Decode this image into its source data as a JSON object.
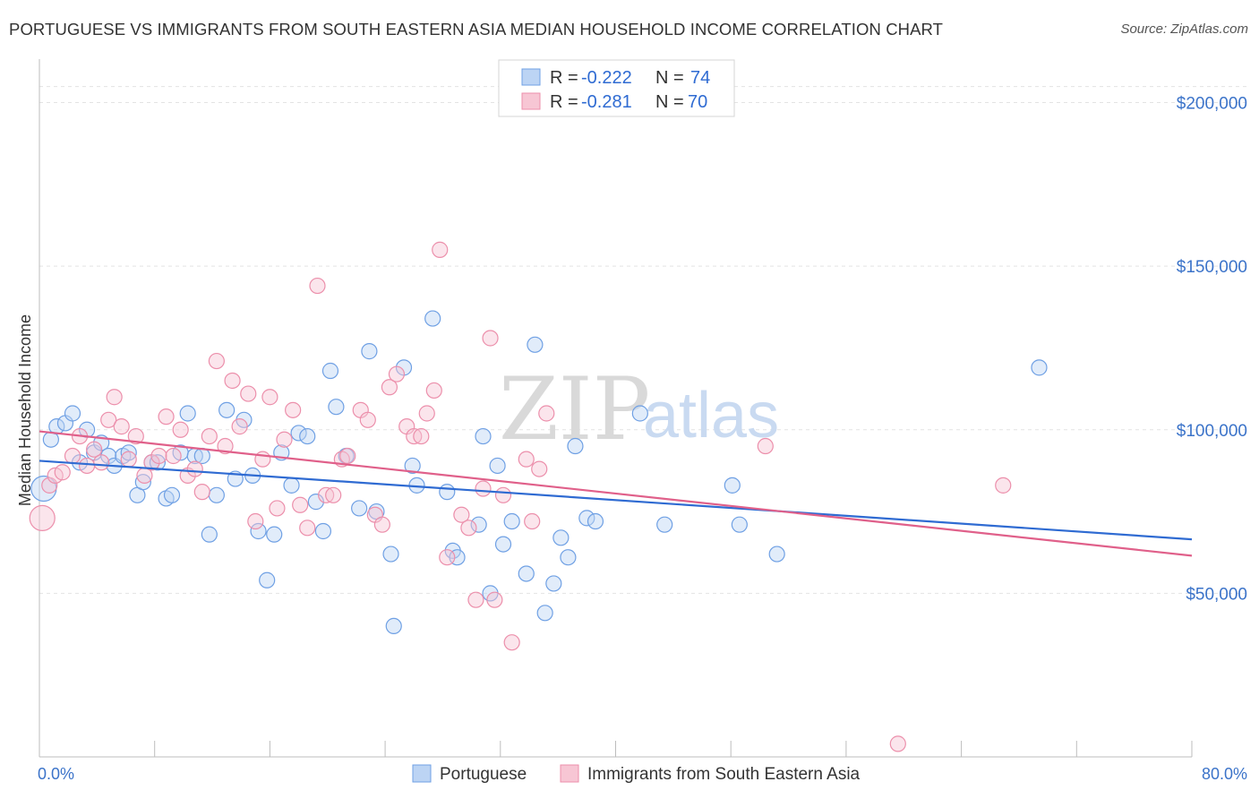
{
  "header": {
    "title": "PORTUGUESE VS IMMIGRANTS FROM SOUTH EASTERN ASIA MEDIAN HOUSEHOLD INCOME CORRELATION CHART",
    "source": "Source: ZipAtlas.com"
  },
  "watermark": {
    "zip": "ZIP",
    "atlas": "atlas"
  },
  "legend": {
    "rows": [
      {
        "r_label": "R =",
        "r_value": "-0.222",
        "n_label": "N =",
        "n_value": "74"
      },
      {
        "r_label": "R =",
        "r_value": "-0.281",
        "n_label": "N =",
        "n_value": "70"
      }
    ]
  },
  "chart_data": {
    "type": "scatter",
    "title": "PORTUGUESE VS IMMIGRANTS FROM SOUTH EASTERN ASIA MEDIAN HOUSEHOLD INCOME CORRELATION CHART",
    "xlabel": "",
    "ylabel": "Median Household Income",
    "xlim": [
      0,
      80
    ],
    "ylim": [
      0,
      210000
    ],
    "x_tick_labels": [
      "0.0%",
      "80.0%"
    ],
    "y_tick_values": [
      50000,
      100000,
      150000,
      200000
    ],
    "y_tick_labels": [
      "$50,000",
      "$100,000",
      "$150,000",
      "$200,000"
    ],
    "grid": "horizontal dashed",
    "legend_position": "top-center",
    "series": [
      {
        "name": "Portuguese",
        "color": "#6fa0e4",
        "fill": "#bcd4f4",
        "trend": {
          "x": [
            0,
            80
          ],
          "y": [
            90500,
            66500
          ]
        },
        "points": [
          [
            0.3,
            82000
          ],
          [
            0.8,
            97000
          ],
          [
            1.2,
            101000
          ],
          [
            1.8,
            102000
          ],
          [
            2.3,
            105000
          ],
          [
            2.8,
            90000
          ],
          [
            3.3,
            100000
          ],
          [
            3.8,
            93000
          ],
          [
            4.3,
            96000
          ],
          [
            4.8,
            92000
          ],
          [
            5.2,
            89000
          ],
          [
            5.8,
            92000
          ],
          [
            6.2,
            93000
          ],
          [
            6.8,
            80000
          ],
          [
            7.2,
            84000
          ],
          [
            7.8,
            90000
          ],
          [
            8.2,
            90000
          ],
          [
            8.8,
            79000
          ],
          [
            9.2,
            80000
          ],
          [
            9.8,
            93000
          ],
          [
            10.3,
            105000
          ],
          [
            10.8,
            92000
          ],
          [
            11.3,
            92000
          ],
          [
            11.8,
            68000
          ],
          [
            12.3,
            80000
          ],
          [
            13.0,
            106000
          ],
          [
            13.6,
            85000
          ],
          [
            14.2,
            103000
          ],
          [
            14.8,
            86000
          ],
          [
            15.2,
            69000
          ],
          [
            15.8,
            54000
          ],
          [
            16.3,
            68000
          ],
          [
            16.8,
            93000
          ],
          [
            17.5,
            83000
          ],
          [
            18.0,
            99000
          ],
          [
            18.6,
            98000
          ],
          [
            19.2,
            78000
          ],
          [
            19.7,
            69000
          ],
          [
            20.2,
            118000
          ],
          [
            20.6,
            107000
          ],
          [
            21.3,
            92000
          ],
          [
            22.2,
            76000
          ],
          [
            22.9,
            124000
          ],
          [
            23.4,
            75000
          ],
          [
            24.4,
            62000
          ],
          [
            24.6,
            40000
          ],
          [
            25.3,
            119000
          ],
          [
            25.9,
            89000
          ],
          [
            26.2,
            83000
          ],
          [
            27.3,
            134000
          ],
          [
            28.3,
            81000
          ],
          [
            28.7,
            63000
          ],
          [
            29.0,
            61000
          ],
          [
            30.5,
            71000
          ],
          [
            30.8,
            98000
          ],
          [
            31.3,
            50000
          ],
          [
            31.8,
            89000
          ],
          [
            32.2,
            65000
          ],
          [
            32.8,
            72000
          ],
          [
            33.8,
            56000
          ],
          [
            34.4,
            126000
          ],
          [
            35.1,
            44000
          ],
          [
            35.7,
            53000
          ],
          [
            36.2,
            67000
          ],
          [
            36.7,
            61000
          ],
          [
            37.2,
            95000
          ],
          [
            38.0,
            73000
          ],
          [
            38.6,
            72000
          ],
          [
            41.7,
            105000
          ],
          [
            43.4,
            71000
          ],
          [
            48.1,
            83000
          ],
          [
            48.6,
            71000
          ],
          [
            51.2,
            62000
          ],
          [
            69.4,
            119000
          ]
        ]
      },
      {
        "name": "Immigrants from South Eastern Asia",
        "color": "#ec8fab",
        "fill": "#f7c6d4",
        "trend": {
          "x": [
            0,
            80
          ],
          "y": [
            99500,
            61500
          ]
        },
        "points": [
          [
            0.2,
            73000
          ],
          [
            0.7,
            83000
          ],
          [
            1.1,
            86000
          ],
          [
            1.6,
            87000
          ],
          [
            2.3,
            92000
          ],
          [
            2.8,
            98000
          ],
          [
            3.3,
            89000
          ],
          [
            3.8,
            94000
          ],
          [
            4.3,
            90000
          ],
          [
            4.8,
            103000
          ],
          [
            5.2,
            110000
          ],
          [
            5.7,
            101000
          ],
          [
            6.2,
            91000
          ],
          [
            6.7,
            98000
          ],
          [
            7.3,
            86000
          ],
          [
            7.8,
            90000
          ],
          [
            8.3,
            92000
          ],
          [
            8.8,
            104000
          ],
          [
            9.3,
            92000
          ],
          [
            9.8,
            100000
          ],
          [
            10.3,
            86000
          ],
          [
            10.8,
            88000
          ],
          [
            11.3,
            81000
          ],
          [
            11.8,
            98000
          ],
          [
            12.3,
            121000
          ],
          [
            12.9,
            95000
          ],
          [
            13.4,
            115000
          ],
          [
            13.9,
            101000
          ],
          [
            14.5,
            111000
          ],
          [
            15.0,
            72000
          ],
          [
            15.5,
            91000
          ],
          [
            16.0,
            110000
          ],
          [
            16.5,
            76000
          ],
          [
            17.0,
            97000
          ],
          [
            17.6,
            106000
          ],
          [
            18.1,
            77000
          ],
          [
            18.6,
            70000
          ],
          [
            19.3,
            144000
          ],
          [
            19.9,
            80000
          ],
          [
            20.4,
            80000
          ],
          [
            21.0,
            91000
          ],
          [
            21.4,
            92000
          ],
          [
            22.3,
            106000
          ],
          [
            22.8,
            103000
          ],
          [
            23.3,
            74000
          ],
          [
            23.8,
            71000
          ],
          [
            24.3,
            113000
          ],
          [
            24.8,
            117000
          ],
          [
            25.5,
            101000
          ],
          [
            26.0,
            98000
          ],
          [
            26.5,
            98000
          ],
          [
            26.9,
            105000
          ],
          [
            27.4,
            112000
          ],
          [
            27.8,
            155000
          ],
          [
            28.3,
            61000
          ],
          [
            29.3,
            74000
          ],
          [
            29.8,
            70000
          ],
          [
            30.3,
            48000
          ],
          [
            30.8,
            82000
          ],
          [
            31.3,
            128000
          ],
          [
            31.6,
            48000
          ],
          [
            32.2,
            80000
          ],
          [
            32.8,
            35000
          ],
          [
            33.8,
            91000
          ],
          [
            34.2,
            72000
          ],
          [
            34.7,
            88000
          ],
          [
            35.2,
            105000
          ],
          [
            50.4,
            95000
          ],
          [
            66.9,
            83000
          ],
          [
            59.6,
            4000
          ]
        ]
      }
    ]
  },
  "bottom_legend": [
    {
      "label": "Portuguese"
    },
    {
      "label": "Immigrants from South Eastern Asia"
    }
  ]
}
